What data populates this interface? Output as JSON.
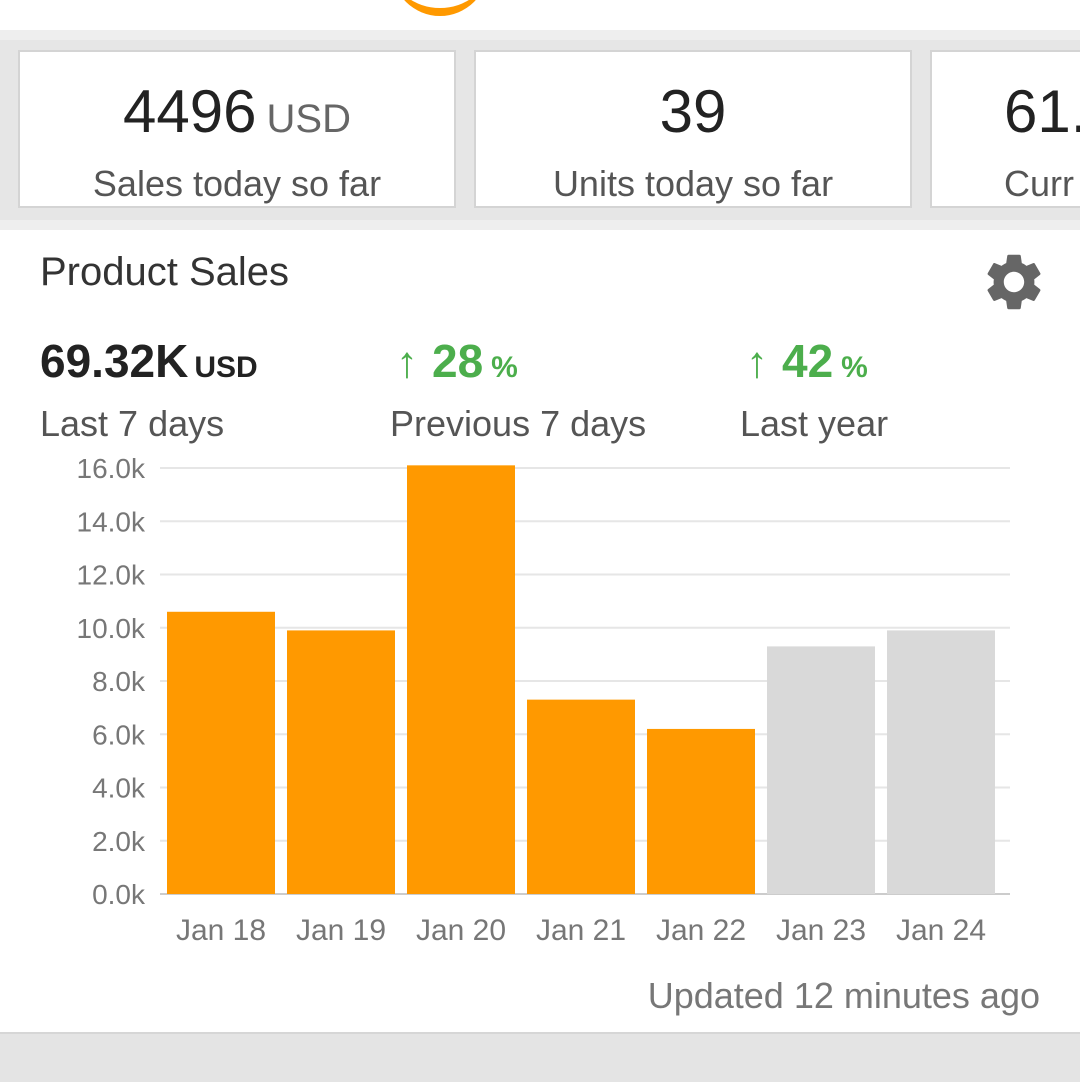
{
  "stats": [
    {
      "value": "4496",
      "unit": "USD",
      "label": "Sales today so far"
    },
    {
      "value": "39",
      "unit": "",
      "label": "Units today so far"
    },
    {
      "value": "61.",
      "unit": "",
      "label": "Curr"
    }
  ],
  "product_sales": {
    "title": "Product Sales",
    "settings_icon": "gear-icon",
    "metrics": [
      {
        "value": "69.32K",
        "unit": "USD",
        "label": "Last 7 days"
      },
      {
        "value": "28",
        "unit": "%",
        "label": "Previous 7 days",
        "trend": "up"
      },
      {
        "value": "42",
        "unit": "%",
        "label": "Last year",
        "trend": "up"
      }
    ],
    "updated": "Updated 12 minutes ago"
  },
  "chart_data": {
    "type": "bar",
    "categories": [
      "Jan 18",
      "Jan 19",
      "Jan 20",
      "Jan 21",
      "Jan 22",
      "Jan 23",
      "Jan 24"
    ],
    "values": [
      10600,
      9900,
      16100,
      7300,
      6200,
      9300,
      9900
    ],
    "bar_colors": [
      "#ff9900",
      "#ff9900",
      "#ff9900",
      "#ff9900",
      "#ff9900",
      "#d9d9d9",
      "#d9d9d9"
    ],
    "yticks": [
      "0.0k",
      "2.0k",
      "4.0k",
      "6.0k",
      "8.0k",
      "10.0k",
      "12.0k",
      "14.0k",
      "16.0k"
    ],
    "ylim": [
      0,
      16000
    ],
    "grid": true,
    "legend": "none"
  },
  "colors": {
    "accent": "#ff9900",
    "trend_up": "#4cae4c",
    "projected_bar": "#d9d9d9"
  }
}
